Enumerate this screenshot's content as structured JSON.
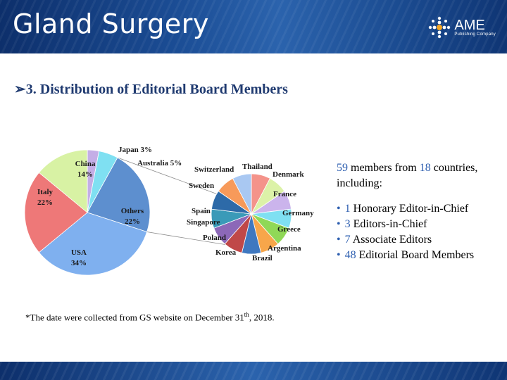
{
  "header": {
    "title": "Gland Surgery",
    "logo_name": "AME",
    "logo_sub": "Publishing Company"
  },
  "section_title": "➢3. Distribution of Editorial Board Members",
  "chart_data": [
    {
      "type": "pie",
      "slices": [
        {
          "label": "Japan",
          "percent_label": "3%",
          "value": 3,
          "color": "#c4aee6"
        },
        {
          "label": "Australia",
          "percent_label": "5%",
          "value": 5,
          "color": "#7fe0f2"
        },
        {
          "label": "Others",
          "percent_label": "22%",
          "value": 22,
          "color": "#5d8fcf"
        },
        {
          "label": "USA",
          "percent_label": "34%",
          "value": 34,
          "color": "#7fb0ef"
        },
        {
          "label": "Italy",
          "percent_label": "22%",
          "value": 22,
          "color": "#ee7878"
        },
        {
          "label": "China",
          "percent_label": "14%",
          "value": 14,
          "color": "#d8f2a4"
        }
      ]
    },
    {
      "type": "pie",
      "slices": [
        {
          "label": "Thailand",
          "value": 1,
          "color": "#f4938a"
        },
        {
          "label": "Denmark",
          "value": 1,
          "color": "#dcf2a8"
        },
        {
          "label": "France",
          "value": 1,
          "color": "#cbb4ec"
        },
        {
          "label": "Germany",
          "value": 1,
          "color": "#7fe0f2"
        },
        {
          "label": "Greece",
          "value": 1,
          "color": "#90d857"
        },
        {
          "label": "Argentina",
          "value": 1,
          "color": "#f7a64a"
        },
        {
          "label": "Brazil",
          "value": 1,
          "color": "#3f78c0"
        },
        {
          "label": "Korea",
          "value": 1,
          "color": "#c04848"
        },
        {
          "label": "Poland",
          "value": 1,
          "color": "#8c68b8"
        },
        {
          "label": "Singapore",
          "value": 1,
          "color": "#3a9ab8"
        },
        {
          "label": "Spain",
          "value": 1,
          "color": "#2d6aa8"
        },
        {
          "label": "Sweden",
          "value": 1,
          "color": "#f79a5a"
        },
        {
          "label": "Switzerland",
          "value": 1,
          "color": "#a9c8f2"
        }
      ]
    }
  ],
  "info": {
    "members_count": "59",
    "members_text": " members from ",
    "countries_count": "18",
    "countries_text": " countries,",
    "including": "including:",
    "roles": [
      {
        "count": "1",
        "label": "Honorary Editor-in-Chief"
      },
      {
        "count": "3",
        "label": "Editors-in-Chief"
      },
      {
        "count": "7",
        "label": "Associate Editors"
      },
      {
        "count": "48",
        "label": "Editorial Board Members"
      }
    ]
  },
  "footnote": {
    "before": "*The date were collected from GS website on December 31",
    "sup": "th",
    "after": ", 2018."
  }
}
